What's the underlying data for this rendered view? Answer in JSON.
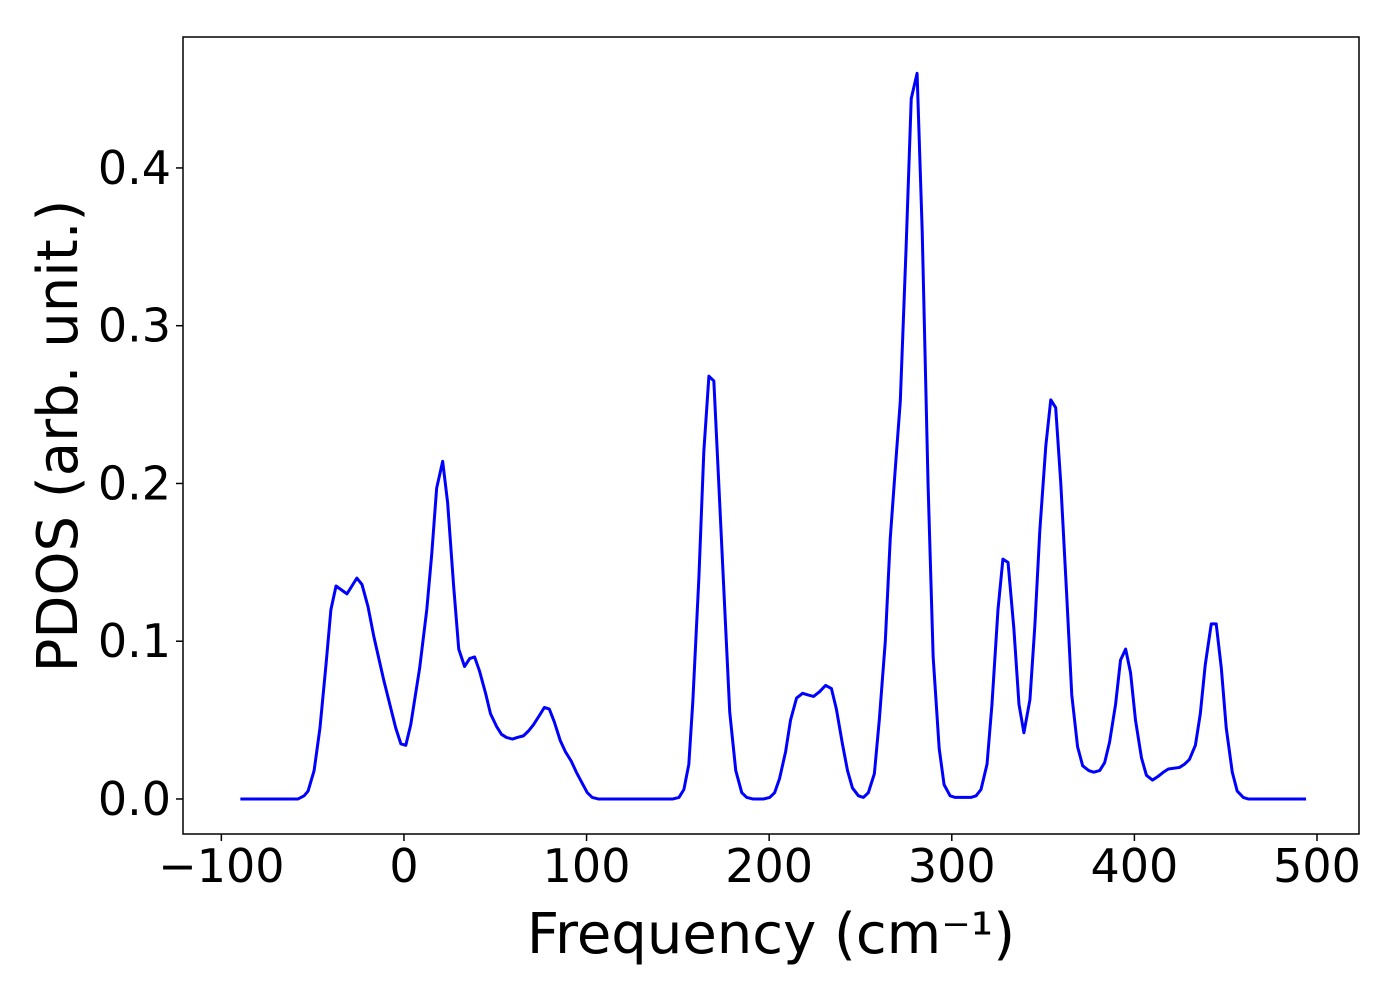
{
  "chart_data": {
    "type": "line",
    "xlabel": "Frequency (cm⁻¹)",
    "ylabel": "PDOS (arb. unit.)",
    "xlim": [
      -121,
      523
    ],
    "ylim": [
      -0.0222,
      0.483
    ],
    "xticks": [
      {
        "value": -100,
        "label": "−100"
      },
      0,
      100,
      200,
      300,
      400,
      500
    ],
    "yticks": [
      {
        "value": 0,
        "label": "0.0"
      },
      0.1,
      0.2,
      0.3,
      0.4
    ],
    "x": [
      -89.6,
      -58,
      -54.7,
      -52.5,
      -49.2,
      -46,
      -42.7,
      -40,
      -37.2,
      -31.2,
      -25.8,
      -23,
      -19.7,
      -16.5,
      -11,
      -4.5,
      -1.7,
      1,
      3.7,
      8.6,
      12.5,
      15.2,
      17.9,
      21.2,
      23.9,
      27.2,
      30,
      33.2,
      36,
      38.7,
      41.4,
      44.7,
      47.4,
      50.7,
      53.4,
      56.1,
      59.4,
      62.1,
      65.4,
      68.1,
      70.9,
      74.2,
      76.9,
      79.6,
      82.3,
      85.6,
      88.4,
      91.6,
      94.4,
      97.6,
      100.4,
      103.1,
      106.4,
      147.3,
      150.6,
      153.3,
      156,
      158.2,
      161.5,
      164.2,
      167,
      169.7,
      172.4,
      175.7,
      178.4,
      181.7,
      185,
      187.7,
      191,
      197,
      200.3,
      203,
      205.7,
      209,
      211.7,
      215,
      218.3,
      221,
      224.3,
      227.6,
      230.9,
      234.1,
      236.8,
      240.1,
      242.9,
      245.6,
      248.9,
      251.6,
      254.3,
      257.6,
      260.3,
      263.6,
      266.3,
      269.1,
      271.8,
      275,
      277.8,
      281,
      283.8,
      287,
      289.8,
      293.1,
      295.8,
      299.1,
      301.8,
      310.5,
      313.3,
      316,
      319.3,
      322,
      325.3,
      328,
      330.8,
      334,
      336.8,
      339.5,
      342.8,
      345.5,
      348.2,
      351.5,
      354.2,
      356.9,
      359.7,
      362.9,
      365.7,
      368.9,
      371.7,
      375,
      377.7,
      381,
      383.7,
      386.4,
      389.7,
      392.4,
      395.2,
      397.9,
      400.6,
      403.9,
      406.6,
      409.9,
      412.6,
      415.9,
      418.6,
      424.7,
      427.4,
      430.1,
      433.4,
      436.1,
      438.8,
      442.1,
      444.8,
      447.6,
      450.3,
      453.6,
      456.3,
      459.6,
      462.3,
      494
    ],
    "series": [
      {
        "color": "#0000ff",
        "values": [
          0,
          0,
          0.002,
          0.005,
          0.018,
          0.045,
          0.085,
          0.12,
          0.135,
          0.13,
          0.14,
          0.136,
          0.122,
          0.103,
          0.075,
          0.045,
          0.035,
          0.034,
          0.047,
          0.083,
          0.12,
          0.155,
          0.197,
          0.214,
          0.188,
          0.135,
          0.095,
          0.084,
          0.089,
          0.09,
          0.081,
          0.067,
          0.054,
          0.046,
          0.041,
          0.039,
          0.038,
          0.039,
          0.04,
          0.043,
          0.047,
          0.053,
          0.058,
          0.057,
          0.049,
          0.037,
          0.03,
          0.024,
          0.017,
          0.01,
          0.004,
          0.001,
          0,
          0,
          0.001,
          0.006,
          0.022,
          0.062,
          0.14,
          0.22,
          0.268,
          0.265,
          0.2,
          0.12,
          0.055,
          0.018,
          0.004,
          0.001,
          0,
          0,
          0.001,
          0.004,
          0.013,
          0.03,
          0.05,
          0.064,
          0.067,
          0.066,
          0.065,
          0.068,
          0.072,
          0.07,
          0.057,
          0.035,
          0.018,
          0.007,
          0.002,
          0.001,
          0.004,
          0.016,
          0.05,
          0.1,
          0.165,
          0.21,
          0.252,
          0.35,
          0.444,
          0.46,
          0.36,
          0.2,
          0.09,
          0.032,
          0.009,
          0.002,
          0.001,
          0.001,
          0.002,
          0.006,
          0.022,
          0.06,
          0.12,
          0.152,
          0.15,
          0.108,
          0.06,
          0.042,
          0.063,
          0.11,
          0.17,
          0.224,
          0.253,
          0.248,
          0.2,
          0.13,
          0.066,
          0.033,
          0.021,
          0.018,
          0.017,
          0.018,
          0.023,
          0.036,
          0.06,
          0.088,
          0.095,
          0.08,
          0.05,
          0.026,
          0.015,
          0.012,
          0.014,
          0.017,
          0.019,
          0.02,
          0.022,
          0.025,
          0.034,
          0.054,
          0.085,
          0.111,
          0.111,
          0.083,
          0.045,
          0.017,
          0.005,
          0.001,
          0,
          0
        ]
      }
    ]
  }
}
